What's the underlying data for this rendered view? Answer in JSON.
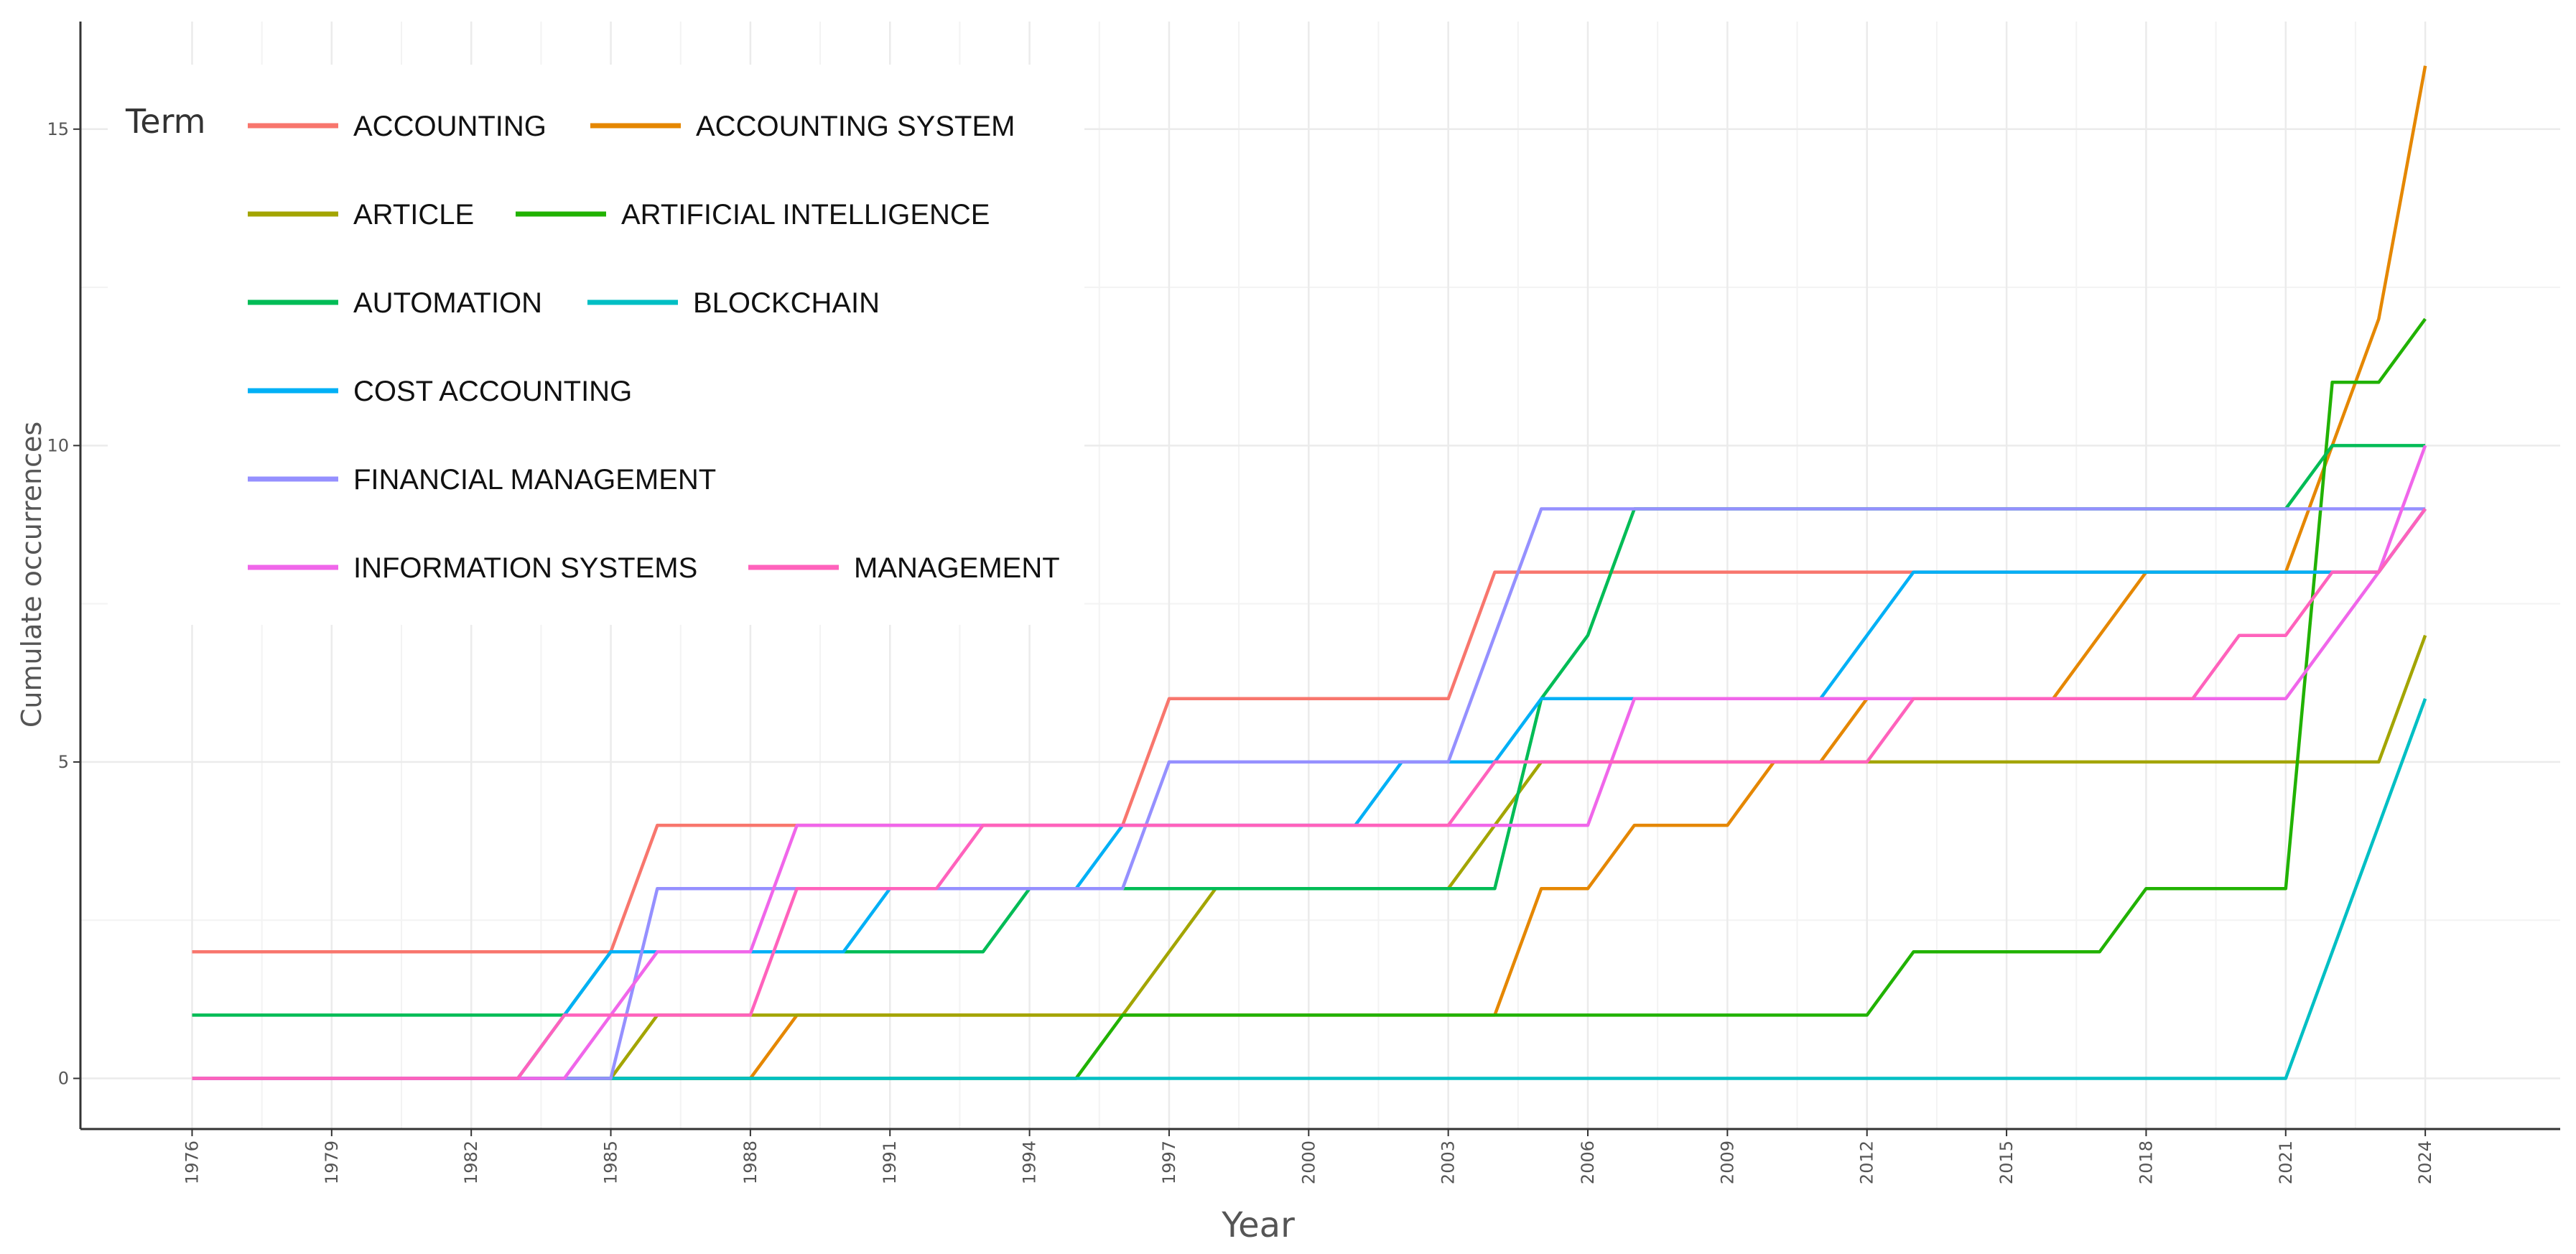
{
  "chart_data": {
    "type": "line",
    "title": "",
    "xlabel": "Year",
    "ylabel": "Cumulate occurrences",
    "xlim": [
      1973.6,
      2026.9
    ],
    "ylim": [
      -0.8,
      16.7
    ],
    "x_ticks": [
      "1976",
      "1979",
      "1982",
      "1985",
      "1988",
      "1991",
      "1994",
      "1997",
      "2000",
      "2003",
      "2006",
      "2009",
      "2012",
      "2015",
      "2018",
      "2021",
      "2024"
    ],
    "y_ticks": [
      "0",
      "5",
      "10",
      "15"
    ],
    "legend_title": "Term",
    "legend_position": "top-left",
    "grid": true,
    "x": [
      1976,
      1977,
      1978,
      1979,
      1980,
      1981,
      1982,
      1983,
      1984,
      1985,
      1986,
      1987,
      1988,
      1989,
      1990,
      1991,
      1992,
      1993,
      1994,
      1995,
      1996,
      1997,
      1998,
      1999,
      2000,
      2001,
      2002,
      2003,
      2004,
      2005,
      2006,
      2007,
      2008,
      2009,
      2010,
      2011,
      2012,
      2013,
      2014,
      2015,
      2016,
      2017,
      2018,
      2019,
      2020,
      2021,
      2022,
      2023,
      2024
    ],
    "series": [
      {
        "name": "ACCOUNTING",
        "color": "#F8766D",
        "values": [
          2,
          2,
          2,
          2,
          2,
          2,
          2,
          2,
          2,
          2,
          4,
          4,
          4,
          4,
          4,
          4,
          4,
          4,
          4,
          4,
          4,
          6,
          6,
          6,
          6,
          6,
          6,
          6,
          8,
          8,
          8,
          8,
          8,
          8,
          8,
          8,
          8,
          8,
          8,
          8,
          8,
          8,
          8,
          8,
          8,
          8,
          8,
          8,
          9
        ]
      },
      {
        "name": "ACCOUNTING SYSTEM",
        "color": "#E58700",
        "values": [
          0,
          0,
          0,
          0,
          0,
          0,
          0,
          0,
          0,
          0,
          0,
          0,
          0,
          1,
          1,
          1,
          1,
          1,
          1,
          1,
          1,
          1,
          1,
          1,
          1,
          1,
          1,
          1,
          1,
          3,
          3,
          4,
          4,
          4,
          5,
          5,
          6,
          6,
          6,
          6,
          6,
          7,
          8,
          8,
          8,
          8,
          10,
          12,
          16
        ]
      },
      {
        "name": "ARTICLE",
        "color": "#A3A500",
        "values": [
          0,
          0,
          0,
          0,
          0,
          0,
          0,
          0,
          0,
          0,
          1,
          1,
          1,
          1,
          1,
          1,
          1,
          1,
          1,
          1,
          1,
          2,
          3,
          3,
          3,
          3,
          3,
          3,
          4,
          5,
          5,
          5,
          5,
          5,
          5,
          5,
          5,
          5,
          5,
          5,
          5,
          5,
          5,
          5,
          5,
          5,
          5,
          5,
          7
        ]
      },
      {
        "name": "ARTIFICIAL INTELLIGENCE",
        "color": "#21B200",
        "values": [
          0,
          0,
          0,
          0,
          0,
          0,
          0,
          0,
          0,
          0,
          0,
          0,
          0,
          0,
          0,
          0,
          0,
          0,
          0,
          0,
          1,
          1,
          1,
          1,
          1,
          1,
          1,
          1,
          1,
          1,
          1,
          1,
          1,
          1,
          1,
          1,
          1,
          2,
          2,
          2,
          2,
          2,
          3,
          3,
          3,
          3,
          11,
          11,
          12
        ]
      },
      {
        "name": "AUTOMATION",
        "color": "#00BC56",
        "values": [
          1,
          1,
          1,
          1,
          1,
          1,
          1,
          1,
          1,
          2,
          2,
          2,
          2,
          2,
          2,
          2,
          2,
          2,
          3,
          3,
          3,
          3,
          3,
          3,
          3,
          3,
          3,
          3,
          3,
          6,
          7,
          9,
          9,
          9,
          9,
          9,
          9,
          9,
          9,
          9,
          9,
          9,
          9,
          9,
          9,
          9,
          10,
          10,
          10
        ]
      },
      {
        "name": "BLOCKCHAIN",
        "color": "#00BFC4",
        "values": [
          0,
          0,
          0,
          0,
          0,
          0,
          0,
          0,
          0,
          0,
          0,
          0,
          0,
          0,
          0,
          0,
          0,
          0,
          0,
          0,
          0,
          0,
          0,
          0,
          0,
          0,
          0,
          0,
          0,
          0,
          0,
          0,
          0,
          0,
          0,
          0,
          0,
          0,
          0,
          0,
          0,
          0,
          0,
          0,
          0,
          0,
          2,
          4,
          6
        ]
      },
      {
        "name": "COST ACCOUNTING",
        "color": "#00B0F6",
        "values": [
          0,
          0,
          0,
          0,
          0,
          0,
          0,
          0,
          1,
          2,
          2,
          2,
          2,
          2,
          2,
          3,
          3,
          3,
          3,
          3,
          4,
          4,
          4,
          4,
          4,
          4,
          5,
          5,
          5,
          6,
          6,
          6,
          6,
          6,
          6,
          6,
          7,
          8,
          8,
          8,
          8,
          8,
          8,
          8,
          8,
          8,
          8,
          8,
          9
        ]
      },
      {
        "name": "FINANCIAL MANAGEMENT",
        "color": "#9590FF",
        "values": [
          0,
          0,
          0,
          0,
          0,
          0,
          0,
          0,
          0,
          0,
          3,
          3,
          3,
          3,
          3,
          3,
          3,
          3,
          3,
          3,
          3,
          5,
          5,
          5,
          5,
          5,
          5,
          5,
          7,
          9,
          9,
          9,
          9,
          9,
          9,
          9,
          9,
          9,
          9,
          9,
          9,
          9,
          9,
          9,
          9,
          9,
          9,
          9,
          9
        ]
      },
      {
        "name": "INFORMATION SYSTEMS",
        "color": "#F066EA",
        "values": [
          0,
          0,
          0,
          0,
          0,
          0,
          0,
          0,
          0,
          1,
          2,
          2,
          2,
          4,
          4,
          4,
          4,
          4,
          4,
          4,
          4,
          4,
          4,
          4,
          4,
          4,
          4,
          4,
          4,
          4,
          4,
          6,
          6,
          6,
          6,
          6,
          6,
          6,
          6,
          6,
          6,
          6,
          6,
          6,
          6,
          6,
          7,
          8,
          10
        ]
      },
      {
        "name": "MANAGEMENT",
        "color": "#FF62BC",
        "values": [
          0,
          0,
          0,
          0,
          0,
          0,
          0,
          0,
          1,
          1,
          1,
          1,
          1,
          3,
          3,
          3,
          3,
          4,
          4,
          4,
          4,
          4,
          4,
          4,
          4,
          4,
          4,
          4,
          5,
          5,
          5,
          5,
          5,
          5,
          5,
          5,
          5,
          6,
          6,
          6,
          6,
          6,
          6,
          6,
          7,
          7,
          8,
          8,
          9
        ]
      }
    ]
  }
}
